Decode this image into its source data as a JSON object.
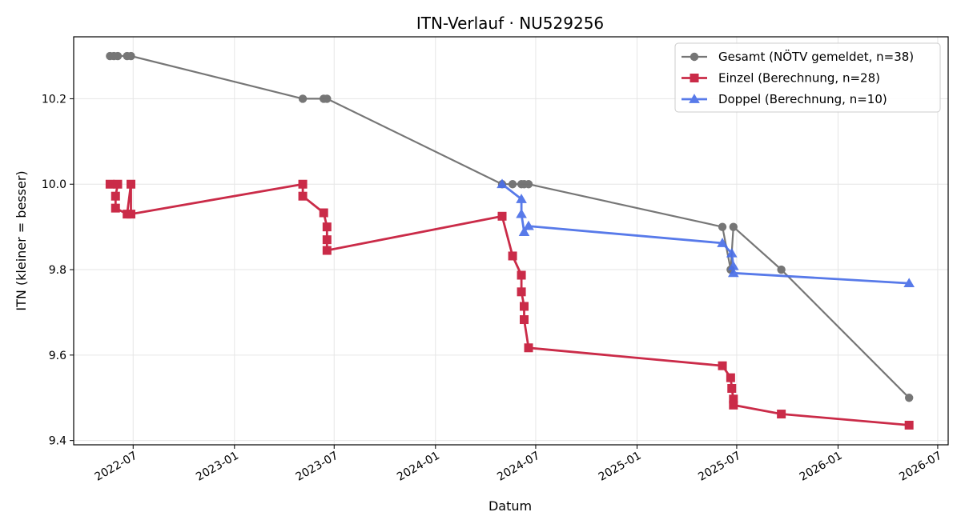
{
  "chart_data": {
    "type": "line",
    "title": "ITN-Verlauf · NU529256",
    "xlabel": "Datum",
    "ylabel": "ITN  (kleiner = besser)",
    "x_ticks": [
      "2022-07",
      "2023-01",
      "2023-07",
      "2024-01",
      "2024-07",
      "2025-01",
      "2025-07",
      "2026-01",
      "2026-07"
    ],
    "y_ticks": [
      9.4,
      9.6,
      9.8,
      10.0,
      10.2
    ],
    "xlim": [
      "2022-03-15",
      "2026-07-20"
    ],
    "ylim": [
      9.39,
      10.345
    ],
    "grid": true,
    "legend_position": "top-right",
    "series": [
      {
        "name": "Gesamt (NÖTV gemeldet, n=38)",
        "color": "#555555",
        "marker": "circle",
        "points": [
          [
            "2022-05-20",
            10.3
          ],
          [
            "2022-05-27",
            10.3
          ],
          [
            "2022-06-03",
            10.3
          ],
          [
            "2022-06-20",
            10.3
          ],
          [
            "2022-06-27",
            10.3
          ],
          [
            "2023-05-05",
            10.2
          ],
          [
            "2023-06-12",
            10.2
          ],
          [
            "2023-06-18",
            10.2
          ],
          [
            "2024-05-01",
            10.0
          ],
          [
            "2024-05-20",
            10.0
          ],
          [
            "2024-06-05",
            10.0
          ],
          [
            "2024-06-10",
            10.0
          ],
          [
            "2024-06-18",
            10.0
          ],
          [
            "2025-06-05",
            9.9
          ],
          [
            "2025-06-20",
            9.8
          ],
          [
            "2025-06-25",
            9.9
          ],
          [
            "2025-09-20",
            9.8
          ],
          [
            "2026-05-10",
            9.5
          ]
        ]
      },
      {
        "name": "Einzel (Berechnung, n=28)",
        "color": "#c8203f",
        "marker": "square",
        "points": [
          [
            "2022-05-20",
            10.0
          ],
          [
            "2022-06-03",
            10.0
          ],
          [
            "2022-05-30",
            9.972
          ],
          [
            "2022-05-30",
            9.944
          ],
          [
            "2022-06-20",
            9.93
          ],
          [
            "2022-06-27",
            10.0
          ],
          [
            "2022-06-27",
            9.93
          ],
          [
            "2023-05-05",
            10.0
          ],
          [
            "2023-05-05",
            9.972
          ],
          [
            "2023-06-12",
            9.933
          ],
          [
            "2023-06-18",
            9.9
          ],
          [
            "2023-06-18",
            9.87
          ],
          [
            "2023-06-18",
            9.845
          ],
          [
            "2024-05-01",
            9.925
          ],
          [
            "2024-05-20",
            9.832
          ],
          [
            "2024-06-05",
            9.787
          ],
          [
            "2024-06-05",
            9.748
          ],
          [
            "2024-06-10",
            9.714
          ],
          [
            "2024-06-10",
            9.683
          ],
          [
            "2024-06-18",
            9.617
          ],
          [
            "2025-06-05",
            9.575
          ],
          [
            "2025-06-20",
            9.547
          ],
          [
            "2025-06-22",
            9.522
          ],
          [
            "2025-06-25",
            9.497
          ],
          [
            "2025-06-25",
            9.483
          ],
          [
            "2025-09-20",
            9.462
          ],
          [
            "2026-05-10",
            9.436
          ]
        ]
      },
      {
        "name": "Doppel (Berechnung, n=10)",
        "color": "#4a6fe8",
        "marker": "triangle",
        "points": [
          [
            "2024-05-01",
            10.0
          ],
          [
            "2024-06-05",
            9.965
          ],
          [
            "2024-06-05",
            9.93
          ],
          [
            "2024-06-10",
            9.888
          ],
          [
            "2024-06-18",
            9.902
          ],
          [
            "2025-06-05",
            9.862
          ],
          [
            "2025-06-22",
            9.838
          ],
          [
            "2025-06-25",
            9.808
          ],
          [
            "2025-06-25",
            9.792
          ],
          [
            "2026-05-10",
            9.768
          ]
        ]
      }
    ]
  }
}
